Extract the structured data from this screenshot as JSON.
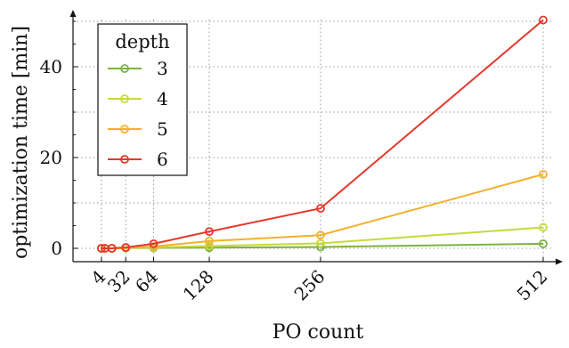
{
  "chart_data": {
    "type": "line",
    "xlabel": "PO count",
    "ylabel": "optimization time [min]",
    "x": [
      4,
      8,
      16,
      32,
      64,
      128,
      256,
      512
    ],
    "xticks": [
      4,
      32,
      64,
      128,
      256,
      512
    ],
    "yticks": [
      0,
      20,
      40
    ],
    "xlim": [
      0,
      512
    ],
    "ylim": [
      -2,
      50
    ],
    "grid": true,
    "legend": {
      "title": "depth",
      "placement": "top-left"
    },
    "series": [
      {
        "name": "3",
        "color": "#7cb342",
        "values": [
          0,
          0,
          0,
          0.05,
          0.1,
          0.15,
          0.3,
          1.0
        ]
      },
      {
        "name": "4",
        "color": "#c6d93a",
        "values": [
          0,
          0,
          0,
          0.05,
          0.2,
          0.5,
          1.1,
          4.6
        ]
      },
      {
        "name": "5",
        "color": "#f5b02e",
        "values": [
          0,
          0,
          0,
          0.1,
          0.4,
          1.6,
          2.9,
          16.3
        ]
      },
      {
        "name": "6",
        "color": "#e5392b",
        "values": [
          0,
          0,
          0,
          0.2,
          1.0,
          3.7,
          8.8,
          50.3
        ]
      }
    ]
  }
}
